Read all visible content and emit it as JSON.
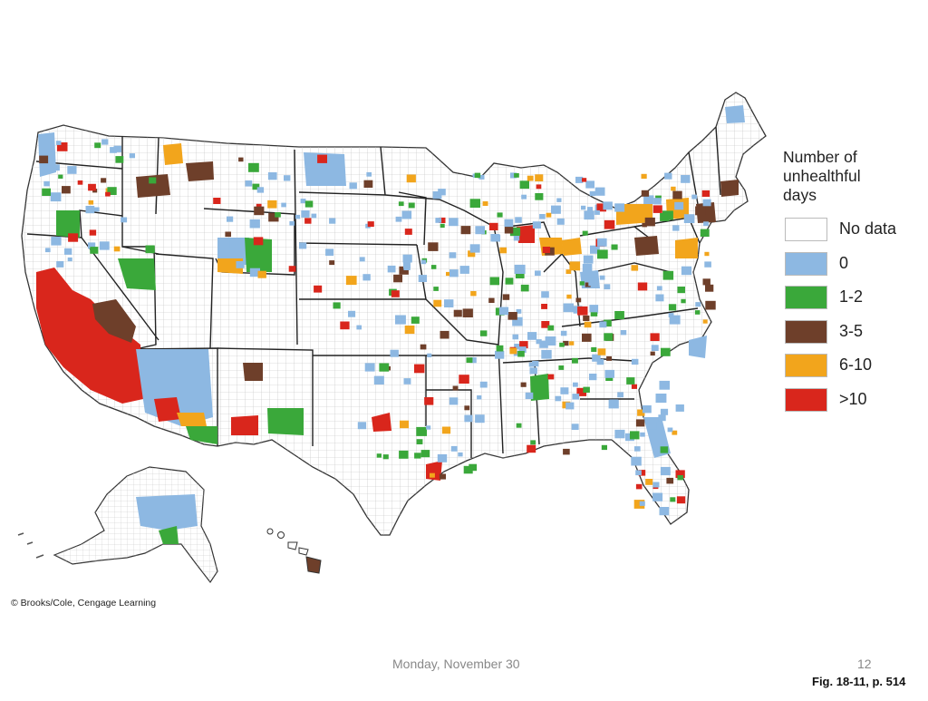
{
  "legend": {
    "title_line1": "Number of",
    "title_line2": "unhealthful",
    "title_line3": "days",
    "items": [
      {
        "label": "No data",
        "color": "#ffffff"
      },
      {
        "label": "0",
        "color": "#8db8e2"
      },
      {
        "label": "1-2",
        "color": "#3aa83a"
      },
      {
        "label": "3-5",
        "color": "#6e3f2a"
      },
      {
        "label": "6-10",
        "color": "#f2a51c"
      },
      {
        "label": ">10",
        "color": "#d9261c"
      }
    ]
  },
  "credit": "© Brooks/Cole, Cengage Learning",
  "footer": {
    "date": "Monday, November 30",
    "page_number": "12",
    "figure_ref": "Fig. 18-11, p. 514"
  }
}
